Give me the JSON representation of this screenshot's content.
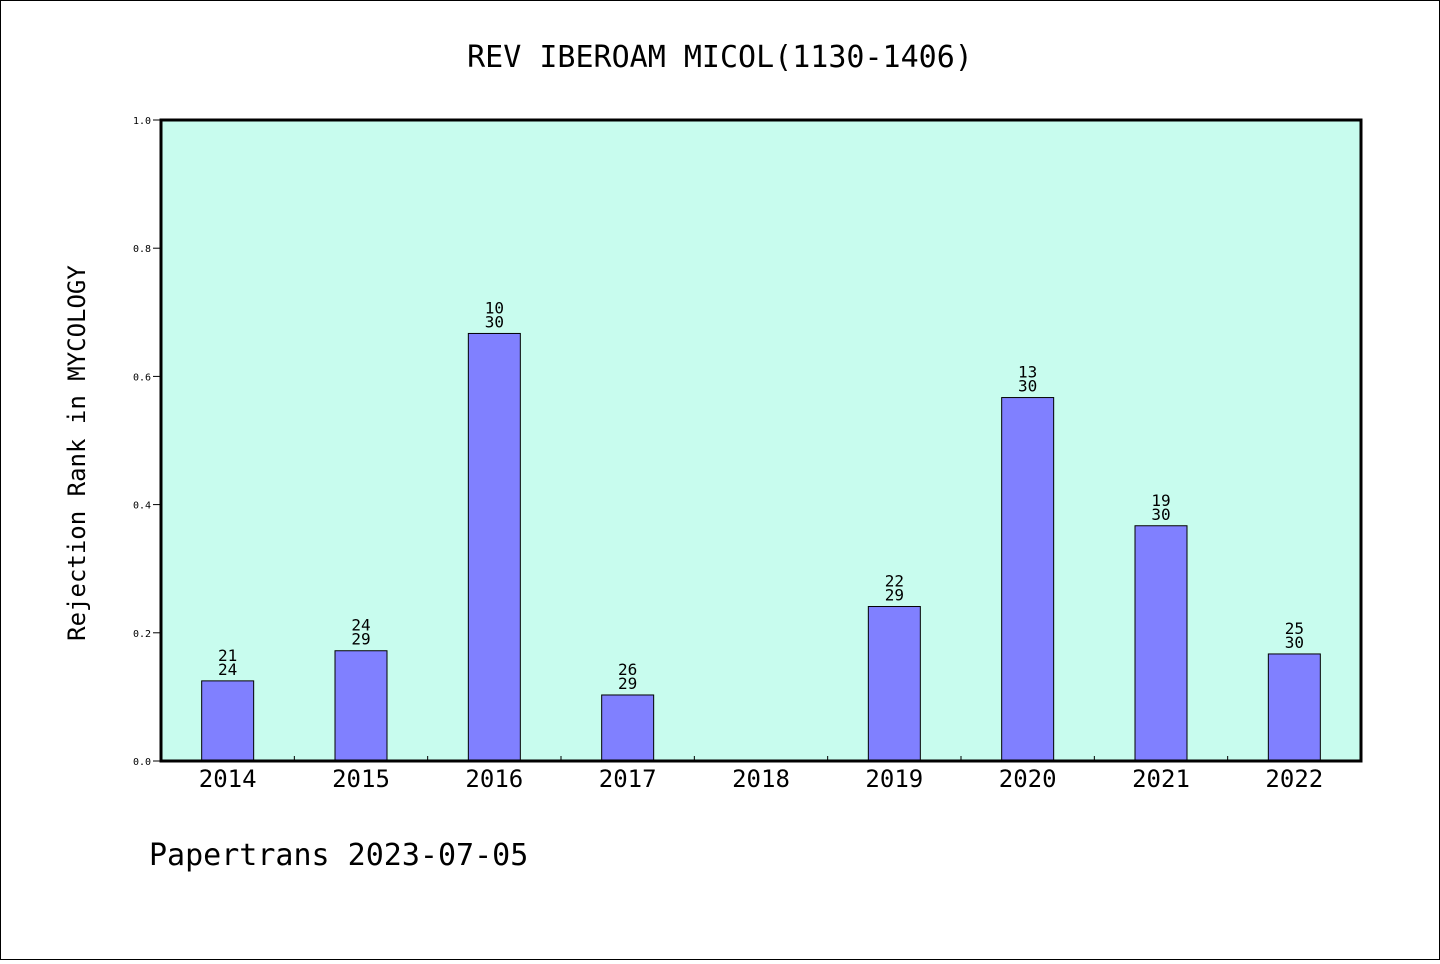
{
  "chart_data": {
    "type": "bar",
    "title": "REV IBEROAM MICOL(1130-1406)",
    "xlabel": "",
    "ylabel": "Rejection Rank in MYCOLOGY",
    "ylim": [
      0,
      1.0
    ],
    "yticks": [
      "0.0",
      "0.2",
      "0.4",
      "0.6",
      "0.8",
      "1.0"
    ],
    "categories": [
      "2014",
      "2015",
      "2016",
      "2017",
      "2018",
      "2019",
      "2020",
      "2021",
      "2022"
    ],
    "values": [
      0.125,
      0.172,
      0.667,
      0.103,
      null,
      0.241,
      0.567,
      0.367,
      0.167
    ],
    "rank_labels": [
      [
        "21",
        "24"
      ],
      [
        "24",
        "29"
      ],
      [
        "10",
        "30"
      ],
      [
        "26",
        "29"
      ],
      null,
      [
        "22",
        "29"
      ],
      [
        "13",
        "30"
      ],
      [
        "19",
        "30"
      ],
      [
        "25",
        "30"
      ]
    ],
    "grid": false,
    "colors": {
      "plot_background": "#c8fcee",
      "bar_fill": "#8080ff",
      "bar_edge": "#000000"
    }
  },
  "footer": "Papertrans 2023-07-05"
}
